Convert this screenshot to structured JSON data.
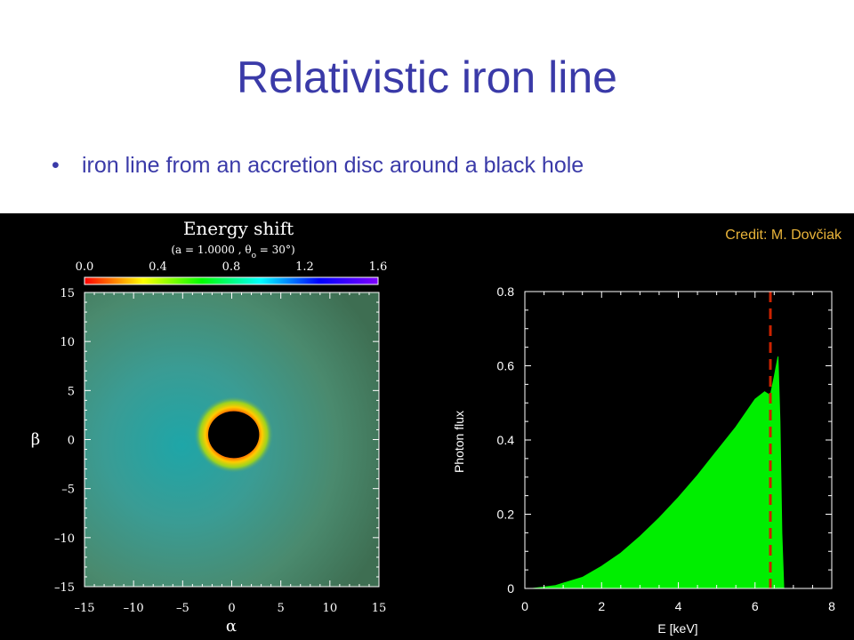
{
  "slide": {
    "title": "Relativistic iron line",
    "bullet": "iron line from an accretion disc around a black hole",
    "credit": "Credit: M. Dovčiak"
  },
  "chart_data": [
    {
      "type": "heatmap",
      "title": "Energy shift",
      "subtitle": "(a = 1.0000 , θ",
      "subtitle_sub": "o",
      "subtitle_end": " = 30°)",
      "xlabel": "α",
      "ylabel": "β",
      "xlim": [
        -15,
        15
      ],
      "ylim": [
        -15,
        15
      ],
      "xticks": [
        "–15",
        "–10",
        "–5",
        "0",
        "5",
        "10",
        "15"
      ],
      "yticks": [
        "15",
        "10",
        "5",
        "0",
        "–5",
        "–10",
        "–15"
      ],
      "colorbar": {
        "range": [
          0.0,
          1.6
        ],
        "ticks": [
          "0.0",
          "0.4",
          "0.8",
          "1.2",
          "1.6"
        ],
        "colors": [
          "#ff0000",
          "#ffff00",
          "#00ff00",
          "#00ffff",
          "#0000ff",
          "#8000ff"
        ]
      },
      "black_hole_center": [
        0.2,
        0.5
      ],
      "black_hole_radius": 2.6
    },
    {
      "type": "area",
      "xlabel": "E [keV]",
      "ylabel": "Photon flux",
      "xlim": [
        0,
        8
      ],
      "ylim": [
        0,
        0.8
      ],
      "xticks": [
        "0",
        "2",
        "4",
        "6",
        "8"
      ],
      "yticks": [
        "0",
        "0.2",
        "0.4",
        "0.6",
        "0.8"
      ],
      "fill_color": "#00ee00",
      "reference_line_x": 6.4,
      "reference_line_color": "#cc2200",
      "x": [
        0.2,
        0.8,
        1.5,
        2.0,
        2.5,
        3.0,
        3.5,
        4.0,
        4.5,
        5.0,
        5.5,
        6.0,
        6.25,
        6.4,
        6.5,
        6.6,
        6.65,
        6.7,
        6.75
      ],
      "y": [
        0.0,
        0.008,
        0.03,
        0.06,
        0.095,
        0.14,
        0.19,
        0.245,
        0.305,
        0.37,
        0.435,
        0.51,
        0.53,
        0.52,
        0.57,
        0.625,
        0.45,
        0.15,
        0.0
      ]
    }
  ]
}
